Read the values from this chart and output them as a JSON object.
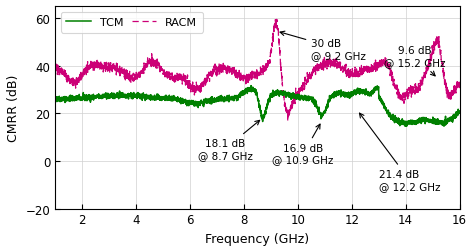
{
  "xlabel": "Frequency (GHz)",
  "ylabel": "CMRR (dB)",
  "xlim": [
    1,
    16
  ],
  "ylim": [
    -20,
    65
  ],
  "xticks": [
    2,
    4,
    6,
    8,
    10,
    12,
    14,
    16
  ],
  "yticks": [
    -20,
    0,
    20,
    40,
    60
  ],
  "tcm_color": "#008000",
  "racm_color": "#cc0077",
  "background": "#ffffff"
}
